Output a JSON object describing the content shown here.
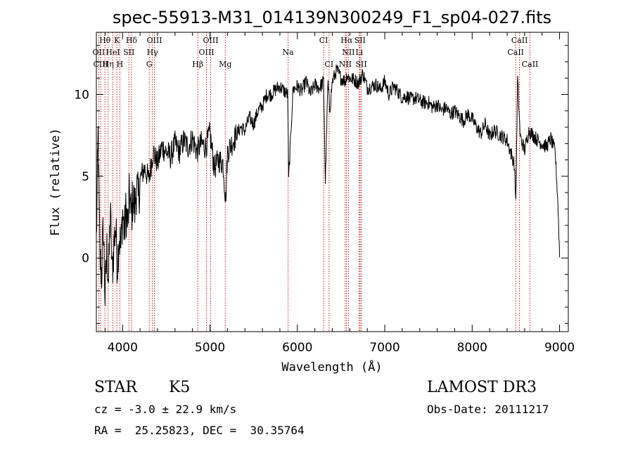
{
  "chart_data": {
    "type": "line",
    "title": "spec-55913-M31_014139N300249_F1_sp04-027.fits",
    "xlabel": "Wavelength (Å)",
    "ylabel": "Flux (relative)",
    "xlim": [
      3700,
      9100
    ],
    "ylim": [
      -4.5,
      13.8
    ],
    "xticks": [
      4000,
      5000,
      6000,
      7000,
      8000,
      9000
    ],
    "yticks": [
      0,
      5,
      10
    ],
    "grid": false,
    "series": [
      {
        "name": "",
        "x": [
          3700,
          3720,
          3740,
          3760,
          3780,
          3800,
          3820,
          3840,
          3860,
          3880,
          3900,
          3920,
          3940,
          3960,
          3980,
          4000,
          4020,
          4040,
          4060,
          4080,
          4100,
          4120,
          4140,
          4160,
          4180,
          4200,
          4250,
          4300,
          4350,
          4400,
          4450,
          4500,
          4550,
          4600,
          4650,
          4700,
          4750,
          4800,
          4850,
          4900,
          4950,
          5000,
          5050,
          5100,
          5150,
          5180,
          5200,
          5250,
          5300,
          5350,
          5400,
          5450,
          5500,
          5550,
          5600,
          5650,
          5700,
          5750,
          5800,
          5850,
          5890,
          5900,
          5950,
          6000,
          6050,
          6100,
          6150,
          6200,
          6250,
          6300,
          6320,
          6350,
          6370,
          6400,
          6450,
          6500,
          6550,
          6563,
          6600,
          6650,
          6700,
          6750,
          6800,
          6850,
          6900,
          6950,
          7000,
          7050,
          7100,
          7150,
          7200,
          7250,
          7300,
          7350,
          7400,
          7450,
          7500,
          7550,
          7600,
          7650,
          7700,
          7750,
          7800,
          7850,
          7900,
          7950,
          8000,
          8050,
          8100,
          8150,
          8200,
          8250,
          8300,
          8350,
          8400,
          8450,
          8480,
          8500,
          8520,
          8550,
          8600,
          8650,
          8700,
          8750,
          8800,
          8850,
          8900,
          8950,
          8980,
          9000
        ],
        "y": [
          1.0,
          7.5,
          0.0,
          -1.0,
          2.0,
          -2.5,
          0.5,
          -1.5,
          3.0,
          -1.0,
          0.8,
          2.0,
          -0.5,
          1.5,
          0.5,
          2.8,
          1.5,
          3.0,
          2.0,
          4.0,
          2.5,
          3.8,
          3.0,
          4.5,
          3.5,
          4.8,
          5.5,
          4.8,
          6.5,
          5.8,
          6.8,
          6.5,
          6.2,
          7.0,
          6.5,
          7.2,
          6.8,
          7.3,
          6.5,
          7.0,
          6.8,
          7.6,
          5.5,
          6.0,
          5.8,
          3.5,
          6.5,
          7.0,
          7.5,
          8.0,
          7.8,
          8.6,
          8.2,
          9.0,
          9.3,
          10.0,
          10.0,
          10.3,
          10.5,
          10.2,
          10.0,
          4.8,
          10.3,
          10.5,
          10.2,
          10.8,
          10.0,
          10.6,
          10.4,
          10.8,
          4.6,
          10.8,
          9.0,
          10.8,
          11.5,
          11.0,
          10.8,
          11.2,
          11.0,
          10.9,
          10.7,
          11.3,
          10.4,
          10.5,
          10.6,
          10.3,
          10.8,
          10.0,
          10.5,
          10.2,
          9.8,
          9.9,
          9.7,
          9.8,
          9.6,
          9.5,
          9.5,
          9.2,
          9.4,
          9.0,
          9.2,
          8.8,
          9.0,
          8.7,
          8.4,
          8.8,
          8.5,
          8.0,
          7.6,
          8.2,
          7.4,
          7.8,
          7.6,
          7.4,
          7.2,
          6.3,
          5.8,
          3.5,
          11.0,
          7.4,
          6.6,
          7.8,
          7.5,
          7.2,
          7.0,
          6.8,
          7.3,
          6.5,
          3.5,
          0.2
        ]
      }
    ],
    "line_markers": [
      {
        "label": "Hθ",
        "x": 3798,
        "row": 1
      },
      {
        "label": "K",
        "x": 3934,
        "row": 1
      },
      {
        "label": "Hδ",
        "x": 4102,
        "row": 1
      },
      {
        "label": "OIII",
        "x": 4364,
        "row": 1
      },
      {
        "label": "OIII",
        "x": 5008,
        "row": 1
      },
      {
        "label": "CI",
        "x": 6300,
        "row": 1
      },
      {
        "label": "Hα",
        "x": 6563,
        "row": 1
      },
      {
        "label": "SII",
        "x": 6717,
        "row": 1
      },
      {
        "label": "CaII",
        "x": 8542,
        "row": 1
      },
      {
        "label": "OII",
        "x": 3727,
        "row": 2
      },
      {
        "label": "HeI",
        "x": 3889,
        "row": 2
      },
      {
        "label": "SII",
        "x": 4072,
        "row": 2
      },
      {
        "label": "Hγ",
        "x": 4341,
        "row": 2
      },
      {
        "label": "OIII",
        "x": 4960,
        "row": 2
      },
      {
        "label": "Na",
        "x": 5894,
        "row": 2
      },
      {
        "label": "NII",
        "x": 6584,
        "row": 2
      },
      {
        "label": "Li",
        "x": 6708,
        "row": 2
      },
      {
        "label": "CaII",
        "x": 8498,
        "row": 2
      },
      {
        "label": "CIII",
        "x": 3750,
        "row": 3
      },
      {
        "label": "Hη",
        "x": 3835,
        "row": 3
      },
      {
        "label": "H",
        "x": 3969,
        "row": 3
      },
      {
        "label": "G",
        "x": 4305,
        "row": 3
      },
      {
        "label": "Hβ",
        "x": 4861,
        "row": 3
      },
      {
        "label": "Mg",
        "x": 5175,
        "row": 3
      },
      {
        "label": "CI",
        "x": 6363,
        "row": 3
      },
      {
        "label": "NII",
        "x": 6548,
        "row": 3
      },
      {
        "label": "SII",
        "x": 6731,
        "row": 3
      },
      {
        "label": "CaII",
        "x": 8662,
        "row": 3
      }
    ]
  },
  "info": {
    "object_class": "STAR",
    "subclass": "K5",
    "redshift": "cz = -3.0 ± 22.9 km/s",
    "coords": "RA =  25.25823, DEC =  30.35764",
    "survey": "LAMOST DR3",
    "obs_date": "Obs-Date: 20111217"
  }
}
